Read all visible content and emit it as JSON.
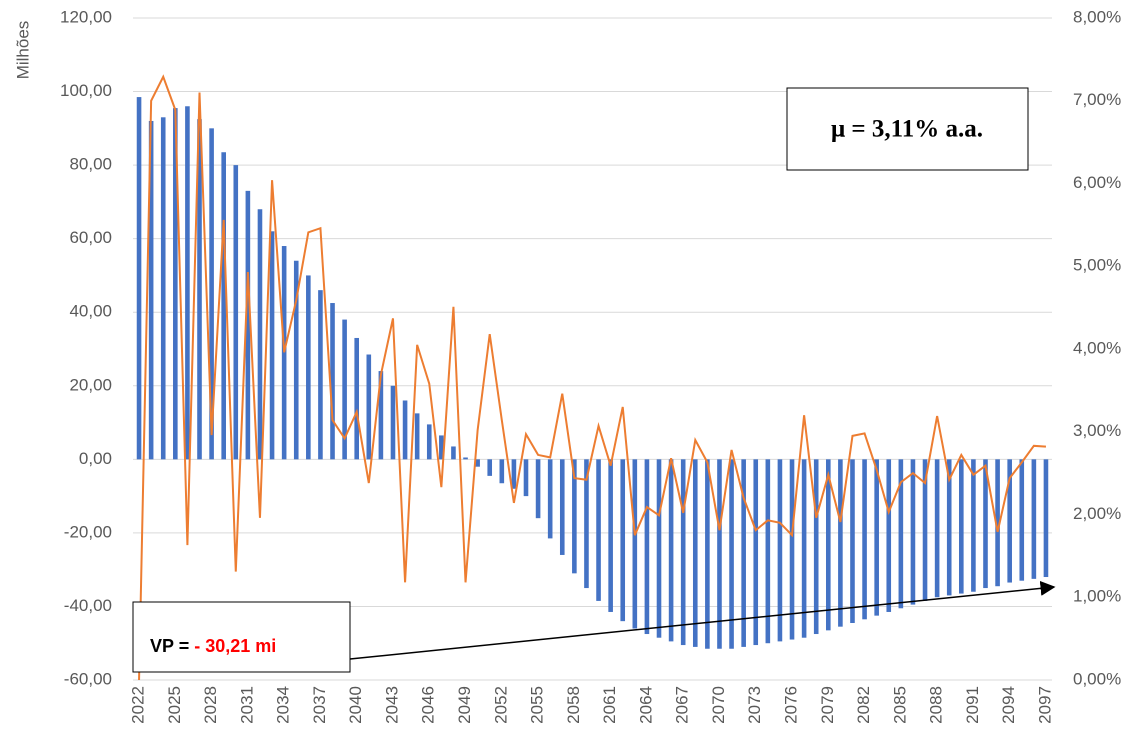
{
  "chart_data": {
    "type": "bar-line",
    "y_label": "Milhões",
    "categories": [
      "2022",
      null,
      null,
      "2025",
      null,
      null,
      "2028",
      null,
      null,
      "2031",
      null,
      null,
      "2034",
      null,
      null,
      "2037",
      null,
      null,
      "2040",
      null,
      null,
      "2043",
      null,
      null,
      "2046",
      null,
      null,
      "2049",
      null,
      null,
      "2052",
      null,
      null,
      "2055",
      null,
      null,
      "2058",
      null,
      null,
      "2061",
      null,
      null,
      "2064",
      null,
      null,
      "2067",
      null,
      null,
      "2070",
      null,
      null,
      "2073",
      null,
      null,
      "2076",
      null,
      null,
      "2079",
      null,
      null,
      "2082",
      null,
      null,
      "2085",
      null,
      null,
      "2088",
      null,
      null,
      "2091",
      null,
      null,
      "2094",
      null,
      null,
      "2097"
    ],
    "series": [
      {
        "type": "bar",
        "color": "#4472c4",
        "values": [
          98.5,
          92,
          93,
          95.5,
          96,
          92.5,
          90,
          83.5,
          80,
          73,
          68,
          62,
          58,
          54,
          50,
          46,
          42.5,
          38,
          33,
          28.5,
          24,
          20,
          16,
          12.5,
          9.5,
          6.5,
          3.5,
          0.5,
          -2,
          -4.5,
          -6.5,
          -8,
          -10,
          -16,
          -21.5,
          -26,
          -31,
          -35,
          -38.5,
          -41.5,
          -44,
          -46,
          -47.5,
          -48.5,
          -49.5,
          -50.5,
          -51,
          -51.5,
          -51.5,
          -51.5,
          -51,
          -50.5,
          -50,
          -49.5,
          -49,
          -48.5,
          -47.5,
          -46.5,
          -45.5,
          -44.5,
          -43.5,
          -42.5,
          -41.5,
          -40.5,
          -39.5,
          -38.5,
          -37.5,
          -37,
          -36.5,
          -36,
          -35,
          -34.5,
          -33.5,
          -33,
          -32.5,
          -32
        ]
      },
      {
        "type": "line",
        "axis": "y2",
        "color": "#ed7d31",
        "values": [
          0.0,
          7.0,
          7.29,
          6.89,
          1.63,
          7.1,
          2.96,
          5.56,
          1.31,
          4.93,
          1.96,
          6.04,
          3.96,
          4.59,
          5.41,
          5.46,
          3.14,
          2.92,
          3.24,
          2.38,
          3.69,
          4.37,
          1.18,
          4.05,
          3.58,
          2.33,
          4.51,
          1.18,
          3.02,
          4.18,
          3.14,
          2.14,
          2.97,
          2.72,
          2.69,
          3.46,
          2.44,
          2.42,
          3.07,
          2.59,
          3.3,
          1.75,
          2.09,
          1.99,
          2.68,
          2.02,
          2.9,
          2.63,
          1.81,
          2.78,
          2.2,
          1.81,
          1.93,
          1.9,
          1.75,
          3.2,
          1.96,
          2.48,
          1.91,
          2.95,
          2.98,
          2.54,
          2.03,
          2.39,
          2.5,
          2.38,
          3.19,
          2.42,
          2.72,
          2.48,
          2.59,
          1.79,
          2.44,
          2.63,
          2.83,
          2.82
        ]
      }
    ],
    "ylim": [
      -60,
      120
    ],
    "yticks": [
      {
        "value": -60,
        "label": "-60,00"
      },
      {
        "value": -40,
        "label": "-40,00"
      },
      {
        "value": -20,
        "label": "-20,00"
      },
      {
        "value": 0,
        "label": "0,00"
      },
      {
        "value": 20,
        "label": "20,00"
      },
      {
        "value": 40,
        "label": "40,00"
      },
      {
        "value": 60,
        "label": "60,00"
      },
      {
        "value": 80,
        "label": "80,00"
      },
      {
        "value": 100,
        "label": "100,00"
      },
      {
        "value": 120,
        "label": "120,00"
      }
    ],
    "y2lim": [
      0,
      8
    ],
    "y2ticks": [
      {
        "value": 0,
        "label": "0,00%"
      },
      {
        "value": 1,
        "label": "1,00%"
      },
      {
        "value": 2,
        "label": "2,00%"
      },
      {
        "value": 3,
        "label": "3,00%"
      },
      {
        "value": 4,
        "label": "4,00%"
      },
      {
        "value": 5,
        "label": "5,00%"
      },
      {
        "value": 6,
        "label": "6,00%"
      },
      {
        "value": 7,
        "label": "7,00%"
      },
      {
        "value": 8,
        "label": "8,00%"
      }
    ],
    "grid": true,
    "annotations": [
      {
        "text": "μ = 3,11% a.a."
      },
      {
        "label": "VP =",
        "value": "- 30,21 mi"
      }
    ]
  }
}
